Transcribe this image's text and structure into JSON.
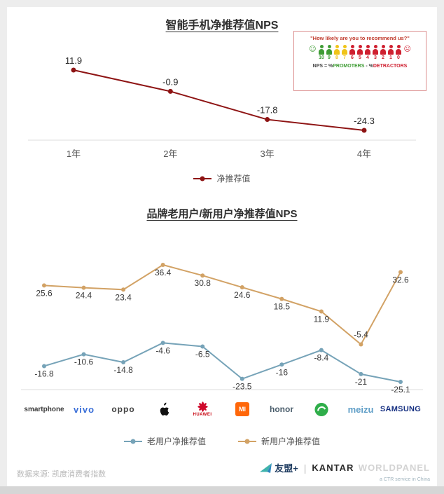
{
  "chart_data": [
    {
      "type": "line",
      "title": "智能手机净推荐值NPS",
      "categories": [
        "1年",
        "2年",
        "3年",
        "4年"
      ],
      "series": [
        {
          "name": "净推荐值",
          "color": "#8e1414",
          "values": [
            11.9,
            -0.9,
            -17.8,
            -24.3
          ],
          "label_dy": [
            -9,
            -9,
            -9,
            -9
          ]
        }
      ],
      "ylim": [
        -30,
        15
      ],
      "grid": false,
      "legend_position": "bottom"
    },
    {
      "type": "line",
      "title": "品牌老用户/新用户净推荐值NPS",
      "categories": [
        "smartphone",
        "vivo",
        "oppo",
        "Apple",
        "HUAWEI",
        "Mi",
        "honor",
        "Gionee",
        "meizu",
        "SAMSUNG"
      ],
      "series": [
        {
          "name": "老用户净推荐值",
          "color": "#76a3b8",
          "values": [
            -16.8,
            -10.6,
            -14.8,
            -4.6,
            -6.5,
            -23.5,
            -16,
            -8.4,
            -21,
            -25.1
          ],
          "label_dy": [
            15,
            15,
            15,
            15,
            15,
            15,
            15,
            15,
            15,
            15
          ]
        },
        {
          "name": "新用户净推荐值",
          "color": "#d2a265",
          "values": [
            25.6,
            24.4,
            23.4,
            36.4,
            30.8,
            24.6,
            18.5,
            11.9,
            -5.4,
            32.6
          ],
          "label_dy": [
            15,
            15,
            15,
            15,
            15,
            15,
            15,
            15,
            -10,
            15
          ]
        }
      ],
      "ylim": [
        -30,
        40
      ],
      "grid": false,
      "legend_position": "bottom"
    }
  ],
  "inset": {
    "title": "\"How likely are you to recommend us?\"",
    "scale": [
      10,
      9,
      8,
      7,
      6,
      5,
      4,
      3,
      2,
      1,
      0
    ],
    "colors": {
      "promoter": "#3f9c35",
      "passive": "#f0c419",
      "detractor": "#cf2030"
    },
    "caption_parts": [
      "NPS = %",
      "PROMOTERS",
      " - %",
      "DETRACTORS"
    ]
  },
  "brands": [
    {
      "label": "smartphone",
      "color": "#3a3a3a"
    },
    {
      "label": "vivo",
      "color": "#3a6fd8"
    },
    {
      "label": "oppo",
      "color": "#404040"
    },
    {
      "icon": "apple-logo",
      "color": "#111111"
    },
    {
      "label": "HUAWEI",
      "icon": "huawei-flower",
      "color": "#c7000b"
    },
    {
      "label": "MI",
      "icon": "mi-square",
      "color": "#ff6709"
    },
    {
      "label": "honor",
      "color": "#4a5d6b"
    },
    {
      "icon": "gionee-logo",
      "color": "#2fae4a"
    },
    {
      "label": "meizu",
      "color": "#5f9ec7"
    },
    {
      "label": "SAMSUNG",
      "color": "#152f81"
    }
  ],
  "footer": {
    "source": "数据来源: 凯度消费者指数",
    "umeng": "友盟+",
    "separator": "|",
    "kantar": "KANTAR",
    "worldpanel": "WORLDPANEL",
    "ctr": "a CTR service in China"
  }
}
